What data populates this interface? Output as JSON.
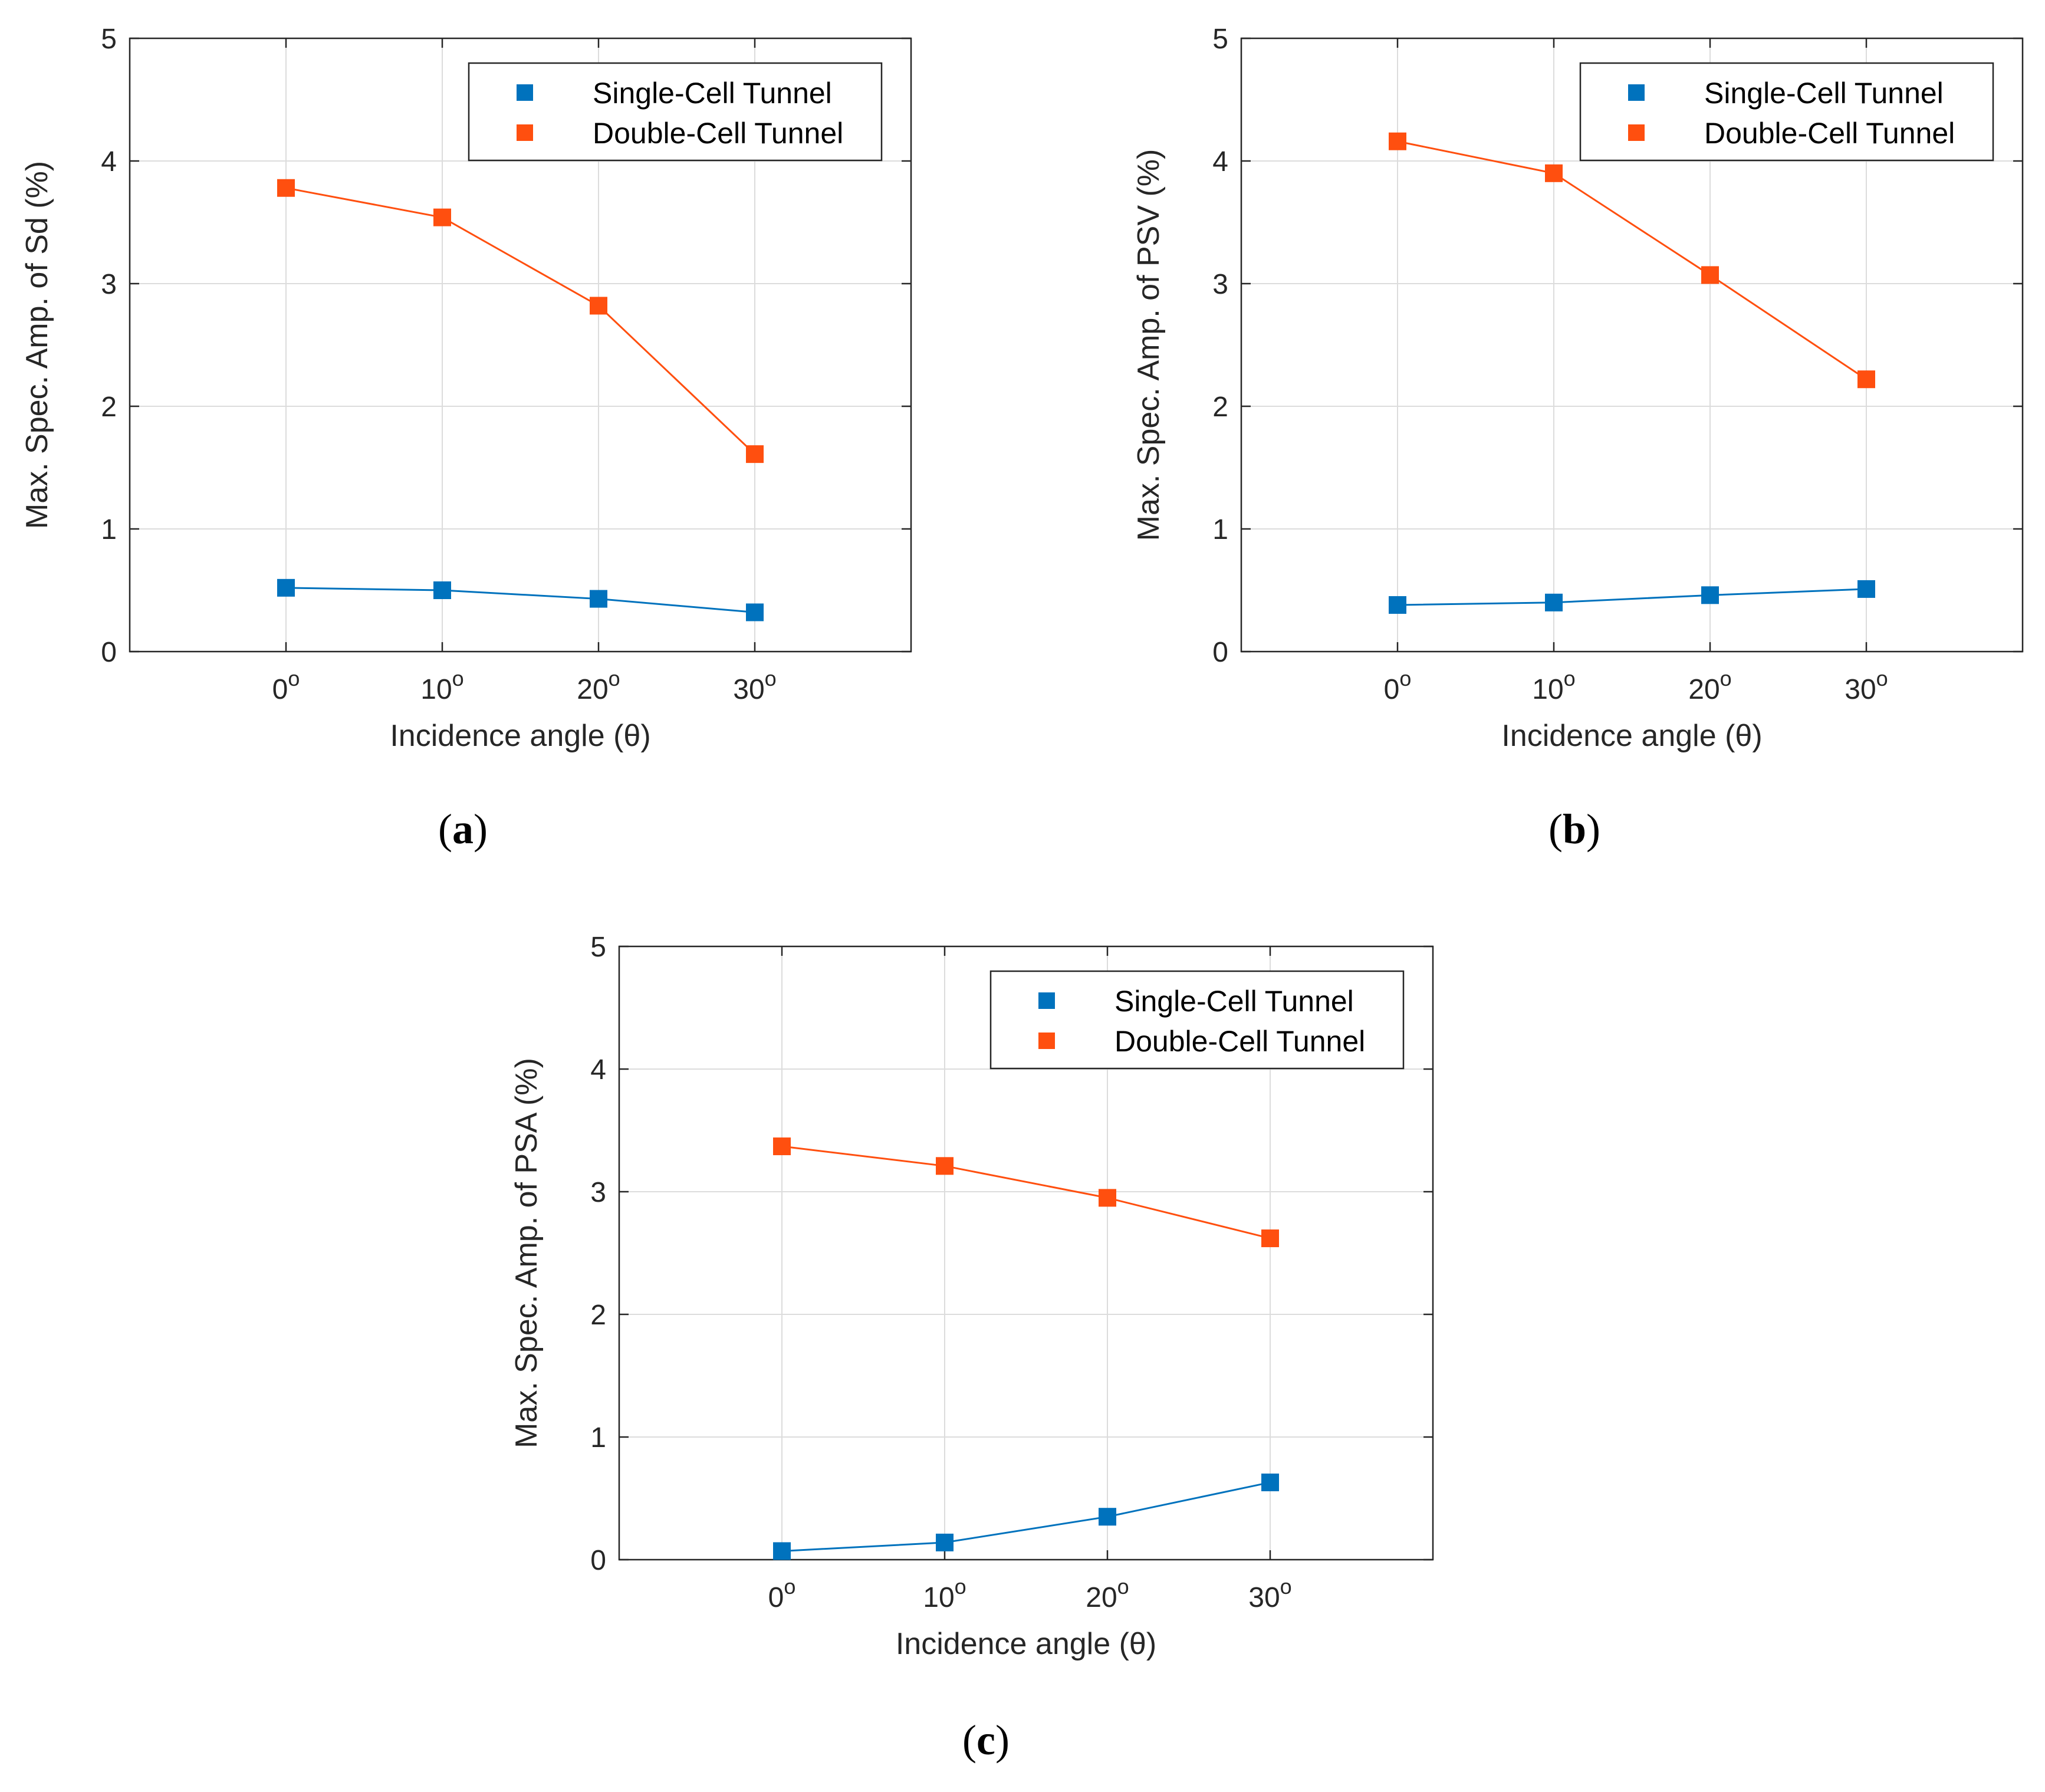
{
  "figure": {
    "panel_labels": [
      "a",
      "b",
      "c"
    ]
  },
  "legend": {
    "single": "Single-Cell Tunnel",
    "double": "Double-Cell Tunnel"
  },
  "colors": {
    "single": "#0072bd",
    "double": "#ff4f0f"
  },
  "chart_data": [
    {
      "id": "a",
      "type": "line",
      "title": "",
      "xlabel": "Incidence angle (θ)",
      "ylabel": "Max. Spec. Amp. of Sd (%)",
      "categories": [
        "0",
        "10",
        "20",
        "30"
      ],
      "x": [
        0,
        10,
        20,
        30
      ],
      "xlim": [
        -10,
        40
      ],
      "ylim": [
        0,
        5
      ],
      "yticks": [
        0,
        1,
        2,
        3,
        4,
        5
      ],
      "xtick_superscript": "o",
      "grid": true,
      "legend_position": "top-right",
      "series": [
        {
          "name": "Single-Cell Tunnel",
          "key": "single",
          "values": [
            0.52,
            0.5,
            0.43,
            0.32
          ]
        },
        {
          "name": "Double-Cell Tunnel",
          "key": "double",
          "values": [
            3.78,
            3.54,
            2.82,
            1.61
          ]
        }
      ]
    },
    {
      "id": "b",
      "type": "line",
      "title": "",
      "xlabel": "Incidence angle (θ)",
      "ylabel": "Max. Spec. Amp. of PSV (%)",
      "categories": [
        "0",
        "10",
        "20",
        "30"
      ],
      "x": [
        0,
        10,
        20,
        30
      ],
      "xlim": [
        -10,
        40
      ],
      "ylim": [
        0,
        5
      ],
      "yticks": [
        0,
        1,
        2,
        3,
        4,
        5
      ],
      "xtick_superscript": "o",
      "grid": true,
      "legend_position": "top-right",
      "series": [
        {
          "name": "Single-Cell Tunnel",
          "key": "single",
          "values": [
            0.38,
            0.4,
            0.46,
            0.51
          ]
        },
        {
          "name": "Double-Cell Tunnel",
          "key": "double",
          "values": [
            4.16,
            3.9,
            3.07,
            2.22
          ]
        }
      ]
    },
    {
      "id": "c",
      "type": "line",
      "title": "",
      "xlabel": "Incidence angle (θ)",
      "ylabel": "Max. Spec. Amp. of PSA (%)",
      "categories": [
        "0",
        "10",
        "20",
        "30"
      ],
      "x": [
        0,
        10,
        20,
        30
      ],
      "xlim": [
        -10,
        40
      ],
      "ylim": [
        0,
        5
      ],
      "yticks": [
        0,
        1,
        2,
        3,
        4,
        5
      ],
      "xtick_superscript": "o",
      "grid": true,
      "legend_position": "top-right",
      "series": [
        {
          "name": "Single-Cell Tunnel",
          "key": "single",
          "values": [
            0.07,
            0.14,
            0.35,
            0.63
          ]
        },
        {
          "name": "Double-Cell Tunnel",
          "key": "double",
          "values": [
            3.37,
            3.21,
            2.95,
            2.62
          ]
        }
      ]
    }
  ]
}
